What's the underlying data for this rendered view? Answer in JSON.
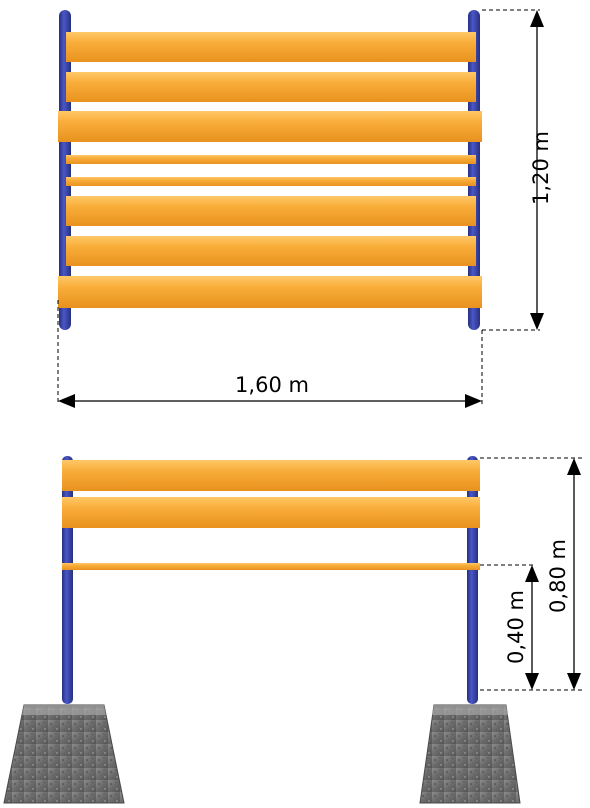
{
  "colors": {
    "post": "#2e3a9e",
    "post_highlight": "#5a67d8",
    "board": "#f7a530",
    "board_highlight": "#ffc65e",
    "board_shadow": "#d6871c",
    "concrete": "#6f6f6f",
    "concrete_light": "#9a9a9a"
  },
  "top_view": {
    "height_label": "1,20 m",
    "width_label": "1,60 m"
  },
  "front_view": {
    "total_height_label": "0,80 m",
    "rail_height_label": "0,40 m"
  }
}
